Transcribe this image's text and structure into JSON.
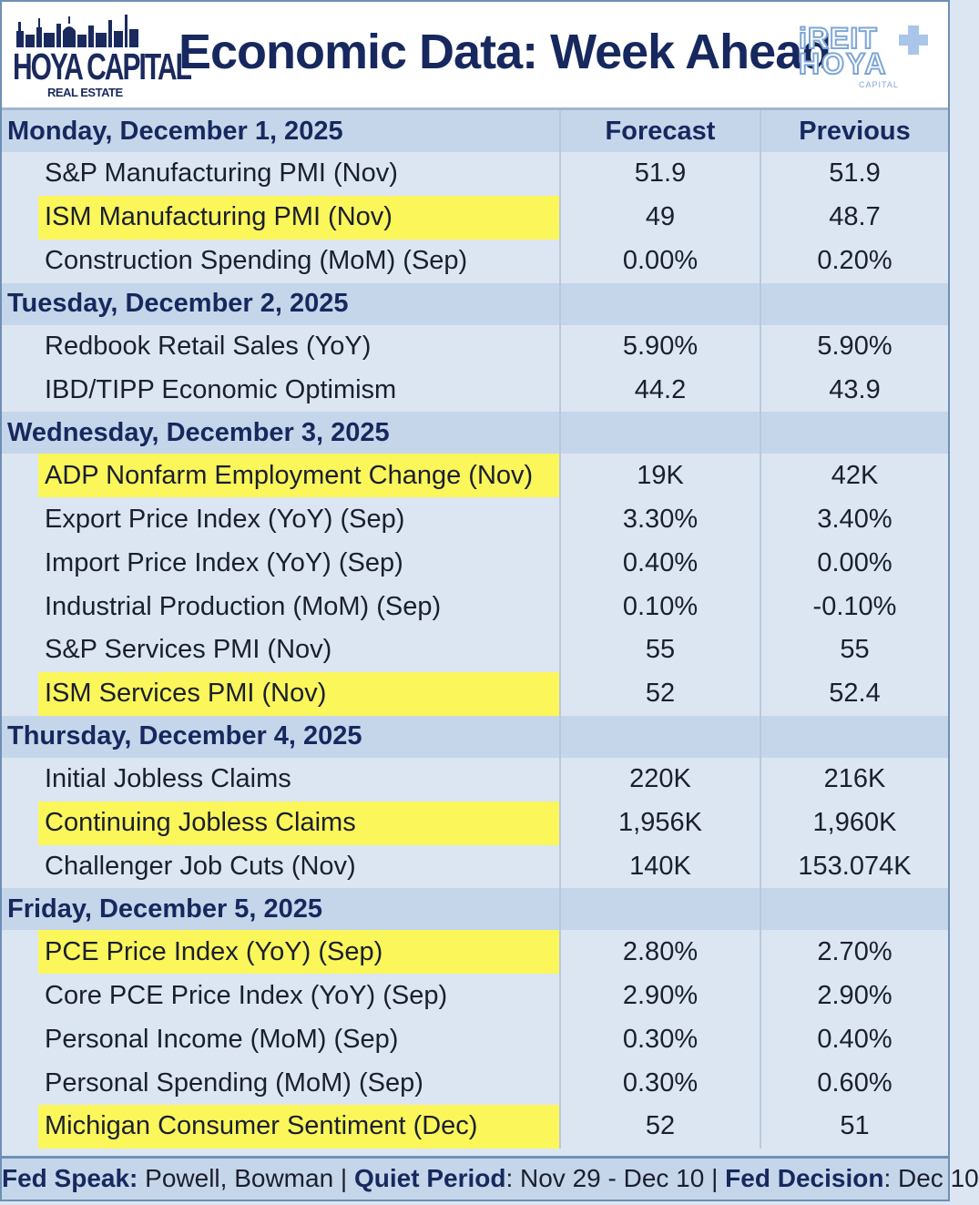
{
  "header": {
    "logo_left": {
      "main": "HOYA CAPITAL",
      "sub": "REAL ESTATE"
    },
    "title": "Economic Data: Week Ahead",
    "logo_right": {
      "line1": "iREIT",
      "line2": "HOYA",
      "line3": "CAPITAL"
    }
  },
  "columns": {
    "forecast": "Forecast",
    "previous": "Previous"
  },
  "days": [
    {
      "label": "Monday, December 1, 2025",
      "events": [
        {
          "name": "S&P Manufacturing PMI (Nov)",
          "forecast": "51.9",
          "previous": "51.9",
          "highlight": false
        },
        {
          "name": "ISM Manufacturing PMI (Nov)",
          "forecast": "49",
          "previous": "48.7",
          "highlight": true
        },
        {
          "name": "Construction Spending (MoM) (Sep)",
          "forecast": "0.00%",
          "previous": "0.20%",
          "highlight": false
        }
      ]
    },
    {
      "label": "Tuesday, December 2, 2025",
      "events": [
        {
          "name": "Redbook Retail Sales (YoY)",
          "forecast": "5.90%",
          "previous": "5.90%",
          "highlight": false
        },
        {
          "name": "IBD/TIPP Economic Optimism",
          "forecast": "44.2",
          "previous": "43.9",
          "highlight": false
        }
      ]
    },
    {
      "label": "Wednesday, December 3, 2025",
      "events": [
        {
          "name": "ADP Nonfarm Employment Change (Nov)",
          "forecast": "19K",
          "previous": "42K",
          "highlight": true
        },
        {
          "name": "Export Price Index (YoY) (Sep)",
          "forecast": "3.30%",
          "previous": "3.40%",
          "highlight": false
        },
        {
          "name": "Import Price Index (YoY) (Sep)",
          "forecast": "0.40%",
          "previous": "0.00%",
          "highlight": false
        },
        {
          "name": "Industrial Production (MoM) (Sep)",
          "forecast": "0.10%",
          "previous": "-0.10%",
          "highlight": false
        },
        {
          "name": "S&P Services PMI (Nov)",
          "forecast": "55",
          "previous": "55",
          "highlight": false
        },
        {
          "name": "ISM Services PMI (Nov)",
          "forecast": "52",
          "previous": "52.4",
          "highlight": true
        }
      ]
    },
    {
      "label": "Thursday, December 4, 2025",
      "events": [
        {
          "name": "Initial Jobless Claims",
          "forecast": "220K",
          "previous": "216K",
          "highlight": false
        },
        {
          "name": "Continuing Jobless Claims",
          "forecast": "1,956K",
          "previous": "1,960K",
          "highlight": true
        },
        {
          "name": "Challenger Job Cuts (Nov)",
          "forecast": "140K",
          "previous": "153.074K",
          "highlight": false
        }
      ]
    },
    {
      "label": "Friday, December 5, 2025",
      "events": [
        {
          "name": "PCE Price Index (YoY) (Sep)",
          "forecast": "2.80%",
          "previous": "2.70%",
          "highlight": true
        },
        {
          "name": "Core PCE Price Index (YoY) (Sep)",
          "forecast": "2.90%",
          "previous": "2.90%",
          "highlight": false
        },
        {
          "name": "Personal Income (MoM) (Sep)",
          "forecast": "0.30%",
          "previous": "0.40%",
          "highlight": false
        },
        {
          "name": "Personal Spending (MoM) (Sep)",
          "forecast": "0.30%",
          "previous": "0.60%",
          "highlight": false
        },
        {
          "name": "Michigan Consumer Sentiment (Dec)",
          "forecast": "52",
          "previous": "51",
          "highlight": true
        }
      ]
    }
  ],
  "footer": {
    "fed_speak_label": "Fed Speak:",
    "fed_speak_value": " Powell, Bowman | ",
    "quiet_label": "Quiet Period",
    "quiet_value": ": Nov 29 - Dec 10 | ",
    "decision_label": "Fed Decision",
    "decision_value": ": Dec 10"
  },
  "colors": {
    "highlight": "#fbf65a",
    "day_band": "#c5d6ea",
    "background": "#dce6f2",
    "title": "#16285e"
  }
}
